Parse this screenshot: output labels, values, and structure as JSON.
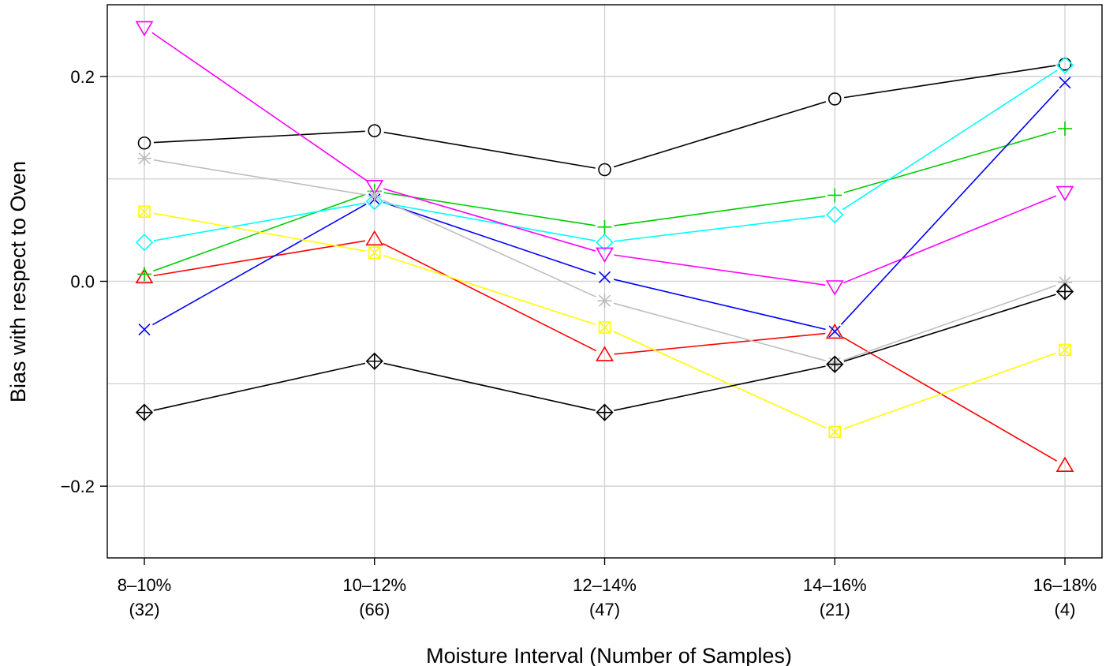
{
  "chart_data": {
    "type": "line",
    "title": "",
    "xlabel": "Moisture Interval (Number of Samples)",
    "ylabel": "Bias with respect to Oven",
    "categories": [
      {
        "interval": "8–10%",
        "count": "(32)"
      },
      {
        "interval": "10–12%",
        "count": "(66)"
      },
      {
        "interval": "12–14%",
        "count": "(47)"
      },
      {
        "interval": "14–16%",
        "count": "(21)"
      },
      {
        "interval": "16–18%",
        "count": "(4)"
      }
    ],
    "y_ticks": [
      {
        "value": -0.2,
        "label": "−0.2"
      },
      {
        "value": 0.0,
        "label": "0.0"
      },
      {
        "value": 0.2,
        "label": "0.2"
      }
    ],
    "y_grid": [
      -0.2,
      -0.1,
      0.0,
      0.1,
      0.2
    ],
    "ylim": [
      -0.27,
      0.27
    ],
    "grid": true,
    "legend": "none",
    "series": [
      {
        "color": "#000000",
        "marker": "circle",
        "values": [
          0.135,
          0.147,
          0.109,
          0.178,
          0.212
        ]
      },
      {
        "color": "#ff0000",
        "marker": "triangle-up",
        "values": [
          0.004,
          0.041,
          -0.072,
          -0.05,
          -0.18
        ]
      },
      {
        "color": "#00cd00",
        "marker": "plus",
        "values": [
          0.007,
          0.088,
          0.053,
          0.084,
          0.149
        ]
      },
      {
        "color": "#0000ff",
        "marker": "cross",
        "values": [
          -0.047,
          0.08,
          0.004,
          -0.049,
          0.194
        ]
      },
      {
        "color": "#00ffff",
        "marker": "diamond",
        "values": [
          0.038,
          0.078,
          0.038,
          0.065,
          0.211
        ]
      },
      {
        "color": "#ff00ff",
        "marker": "triangle-down",
        "values": [
          0.248,
          0.093,
          0.027,
          -0.005,
          0.087
        ]
      },
      {
        "color": "#bebebe",
        "marker": "asterisk",
        "values": [
          0.12,
          0.083,
          -0.019,
          -0.08,
          -0.001
        ]
      },
      {
        "color": "#ffff00",
        "marker": "square-cross",
        "values": [
          0.068,
          0.028,
          -0.045,
          -0.147,
          -0.067
        ]
      },
      {
        "color": "#000000",
        "marker": "diamond-plus",
        "values": [
          -0.128,
          -0.078,
          -0.128,
          -0.081,
          -0.01
        ]
      }
    ]
  }
}
